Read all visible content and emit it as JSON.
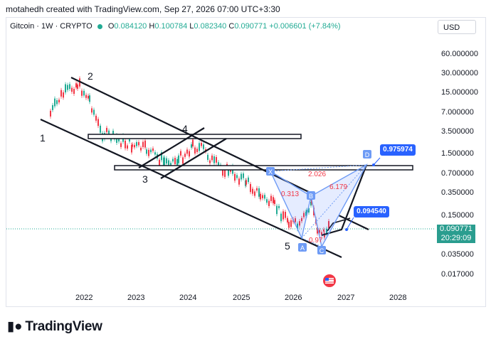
{
  "header": {
    "byline": "motahedh created with TradingView.com, Sep 27, 2026 07:00 UTC+3:30"
  },
  "legend": {
    "symbol": "Gitcoin · 1W · CRYPTO",
    "open_label": "O",
    "open": "0.084120",
    "high_label": "H",
    "high": "0.100784",
    "low_label": "L",
    "low": "0.082340",
    "close_label": "C",
    "close": "0.090771",
    "change": "+0.006601 (+7.84%)"
  },
  "currency": "USD",
  "price_axis": {
    "ticks": [
      "60.000000",
      "30.000000",
      "15.000000",
      "7.000000",
      "3.500000",
      "1.500000",
      "0.700000",
      "0.350000",
      "0.150000",
      "0.035000",
      "0.017000"
    ],
    "last_price": "0.090771",
    "countdown": "20:29:09"
  },
  "time_axis": {
    "ticks": [
      "2022",
      "2023",
      "2024",
      "2025",
      "2026",
      "2027",
      "2028"
    ]
  },
  "wave_labels": [
    "1",
    "2",
    "3",
    "4",
    "5"
  ],
  "harmonic": {
    "points": [
      "X",
      "A",
      "B",
      "C",
      "D"
    ],
    "ratios": [
      "0.313",
      "2.026",
      "6.179",
      "0.97"
    ],
    "targets": [
      "0.975974",
      "0.094540"
    ]
  },
  "brand": "TradingView",
  "colors": {
    "up": "#22ab94",
    "down": "#f23645",
    "pattern": "#2962ff",
    "last_price": "#2a9d8f"
  }
}
